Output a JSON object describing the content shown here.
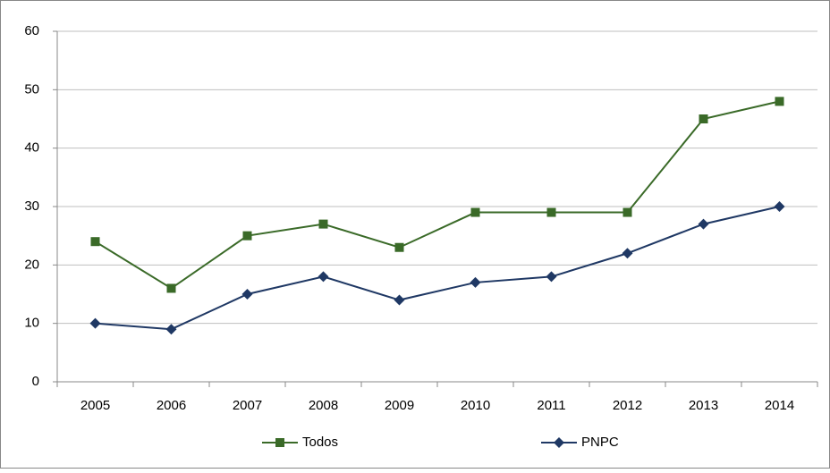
{
  "chart_data": {
    "type": "line",
    "categories": [
      "2005",
      "2006",
      "2007",
      "2008",
      "2009",
      "2010",
      "2011",
      "2012",
      "2013",
      "2014"
    ],
    "series": [
      {
        "name": "Todos",
        "color": "#3a6a28",
        "marker": "square",
        "values": [
          24,
          16,
          25,
          27,
          23,
          29,
          29,
          29,
          45,
          48
        ]
      },
      {
        "name": "PNPC",
        "color": "#1f3864",
        "marker": "diamond",
        "values": [
          10,
          9,
          15,
          18,
          14,
          17,
          18,
          22,
          27,
          30
        ]
      }
    ],
    "ylim": [
      0,
      60
    ],
    "yticks": [
      0,
      10,
      20,
      30,
      40,
      50,
      60
    ],
    "grid": true,
    "legend": "bottom"
  }
}
